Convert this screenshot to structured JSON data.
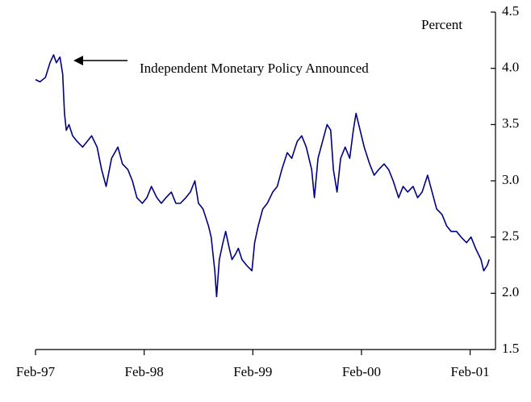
{
  "chart_data": {
    "type": "line",
    "y_axis_label": "Percent",
    "annotation": "Independent Monetary Policy Announced",
    "x": [
      0,
      0.5,
      1.1,
      1.6,
      2.0,
      2.3,
      2.7,
      3.0,
      3.2,
      3.4,
      3.7,
      4.1,
      4.6,
      5.2,
      5.7,
      6.2,
      6.8,
      7.3,
      7.8,
      8.4,
      9.1,
      9.6,
      10.2,
      10.7,
      11.2,
      11.8,
      12.3,
      12.8,
      13.4,
      13.9,
      14.4,
      15.0,
      15.5,
      16.0,
      16.6,
      17.1,
      17.6,
      18.0,
      18.5,
      19.1,
      19.4,
      19.8,
      20.0,
      20.3,
      20.7,
      21.0,
      21.4,
      21.7,
      22.1,
      22.4,
      22.8,
      23.3,
      23.9,
      24.2,
      24.6,
      25.1,
      25.6,
      26.2,
      26.7,
      27.2,
      27.8,
      28.3,
      28.9,
      29.4,
      29.9,
      30.5,
      30.8,
      31.2,
      31.7,
      32.2,
      32.6,
      32.9,
      33.3,
      33.7,
      34.2,
      34.7,
      35.1,
      35.4,
      36.0,
      36.3,
      36.9,
      37.4,
      37.9,
      38.5,
      39.0,
      39.5,
      40.1,
      40.6,
      41.1,
      41.7,
      42.2,
      42.7,
      43.3,
      43.8,
      44.3,
      44.9,
      45.4,
      45.9,
      46.5,
      47.0,
      47.6,
      48.1,
      48.6,
      49.2,
      49.5,
      49.9,
      50.1
    ],
    "series": [
      {
        "name": "Percent",
        "color": "#000080",
        "values": [
          3.9,
          3.88,
          3.92,
          4.05,
          4.12,
          4.05,
          4.1,
          3.95,
          3.6,
          3.45,
          3.5,
          3.4,
          3.35,
          3.3,
          3.35,
          3.4,
          3.3,
          3.1,
          2.95,
          3.2,
          3.3,
          3.15,
          3.1,
          3.0,
          2.85,
          2.8,
          2.85,
          2.95,
          2.85,
          2.8,
          2.85,
          2.9,
          2.8,
          2.8,
          2.85,
          2.9,
          3.0,
          2.8,
          2.75,
          2.6,
          2.5,
          2.2,
          1.97,
          2.3,
          2.45,
          2.55,
          2.4,
          2.3,
          2.35,
          2.4,
          2.3,
          2.25,
          2.2,
          2.45,
          2.6,
          2.75,
          2.8,
          2.9,
          2.95,
          3.1,
          3.25,
          3.2,
          3.35,
          3.4,
          3.3,
          3.1,
          2.85,
          3.2,
          3.35,
          3.5,
          3.45,
          3.1,
          2.9,
          3.2,
          3.3,
          3.2,
          3.45,
          3.6,
          3.4,
          3.3,
          3.15,
          3.05,
          3.1,
          3.15,
          3.1,
          3.0,
          2.85,
          2.95,
          2.9,
          2.95,
          2.85,
          2.9,
          3.05,
          2.9,
          2.75,
          2.7,
          2.6,
          2.55,
          2.55,
          2.5,
          2.45,
          2.5,
          2.4,
          2.3,
          2.2,
          2.25,
          2.3
        ]
      }
    ],
    "xlim": [
      0,
      50.8
    ],
    "xticks": [
      {
        "value": 0,
        "label": "Feb-97"
      },
      {
        "value": 12,
        "label": "Feb-98"
      },
      {
        "value": 24,
        "label": "Feb-99"
      },
      {
        "value": 36,
        "label": "Feb-00"
      },
      {
        "value": 48,
        "label": "Feb-01"
      }
    ],
    "ylim": [
      1.5,
      4.5
    ],
    "yticks": [
      1.5,
      {
        "value": 2,
        "label": "2.0"
      },
      2.5,
      {
        "value": 3,
        "label": "3.0"
      },
      3.5,
      {
        "value": 4,
        "label": "4.0"
      },
      4.5
    ],
    "y_axis_side": "right"
  }
}
